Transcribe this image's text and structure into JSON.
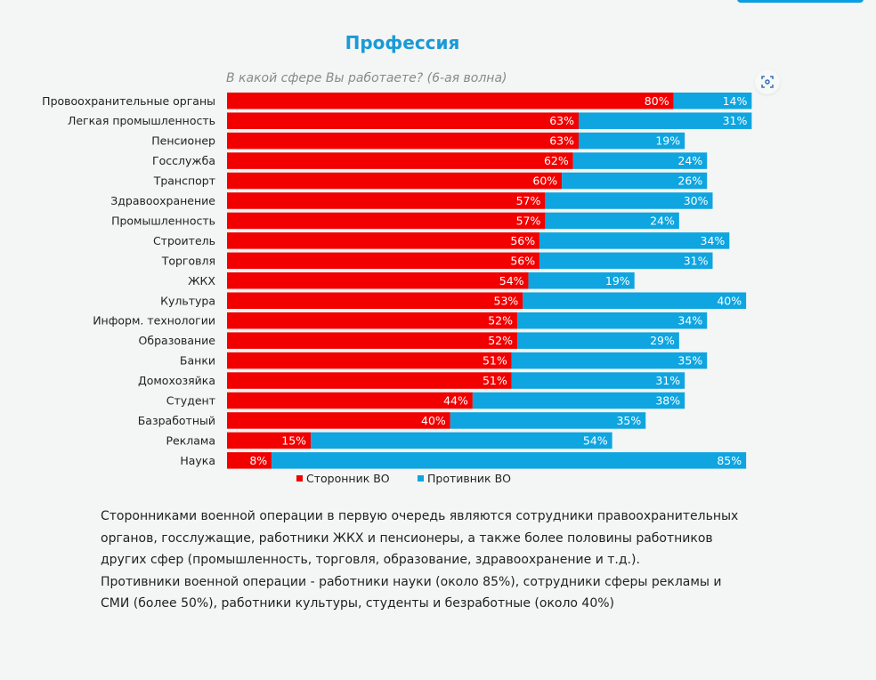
{
  "title": "Профессия",
  "chart_data": {
    "type": "bar",
    "orientation": "horizontal",
    "stacked": true,
    "title": "Профессия",
    "subtitle": "В какой сфере Вы работаете? (6-ая волна)",
    "categories": [
      "Провоохранительные органы",
      "Легкая промышленность",
      "Пенсионер",
      "Госслужба",
      "Транспорт",
      "Здравоохранение",
      "Промышленность",
      "Строитель",
      "Торговля",
      "ЖКХ",
      "Культура",
      "Информ. технологии",
      "Образование",
      "Банки",
      "Домохозяйка",
      "Студент",
      "Базработный",
      "Реклама",
      "Наука"
    ],
    "series": [
      {
        "name": "Сторонник ВО",
        "color": "#f20000",
        "values": [
          80,
          63,
          63,
          62,
          60,
          57,
          57,
          56,
          56,
          54,
          53,
          52,
          52,
          51,
          51,
          44,
          40,
          15,
          8
        ]
      },
      {
        "name": "Противник ВО",
        "color": "#0ea5e0",
        "values": [
          14,
          31,
          19,
          24,
          26,
          30,
          24,
          34,
          31,
          19,
          40,
          34,
          29,
          35,
          31,
          38,
          35,
          54,
          85
        ]
      }
    ],
    "value_suffix": "%",
    "legend": "bottom",
    "grid": false
  },
  "icons": {
    "scan": "scan-icon"
  },
  "note": [
    "Сторонниками военной операции в первую очередь являются сотрудники правоохранительных органов, госслужащие, работники ЖКХ и пенсионеры, а также более половины работников других сфер (промышленность, торговля, образование, здравоохранение и т.д.).",
    "Противники военной операции - работники науки (около 85%), сотрудники сферы рекламы и СМИ (более 50%), работники культуры, студенты и безработные (около 40%)"
  ]
}
